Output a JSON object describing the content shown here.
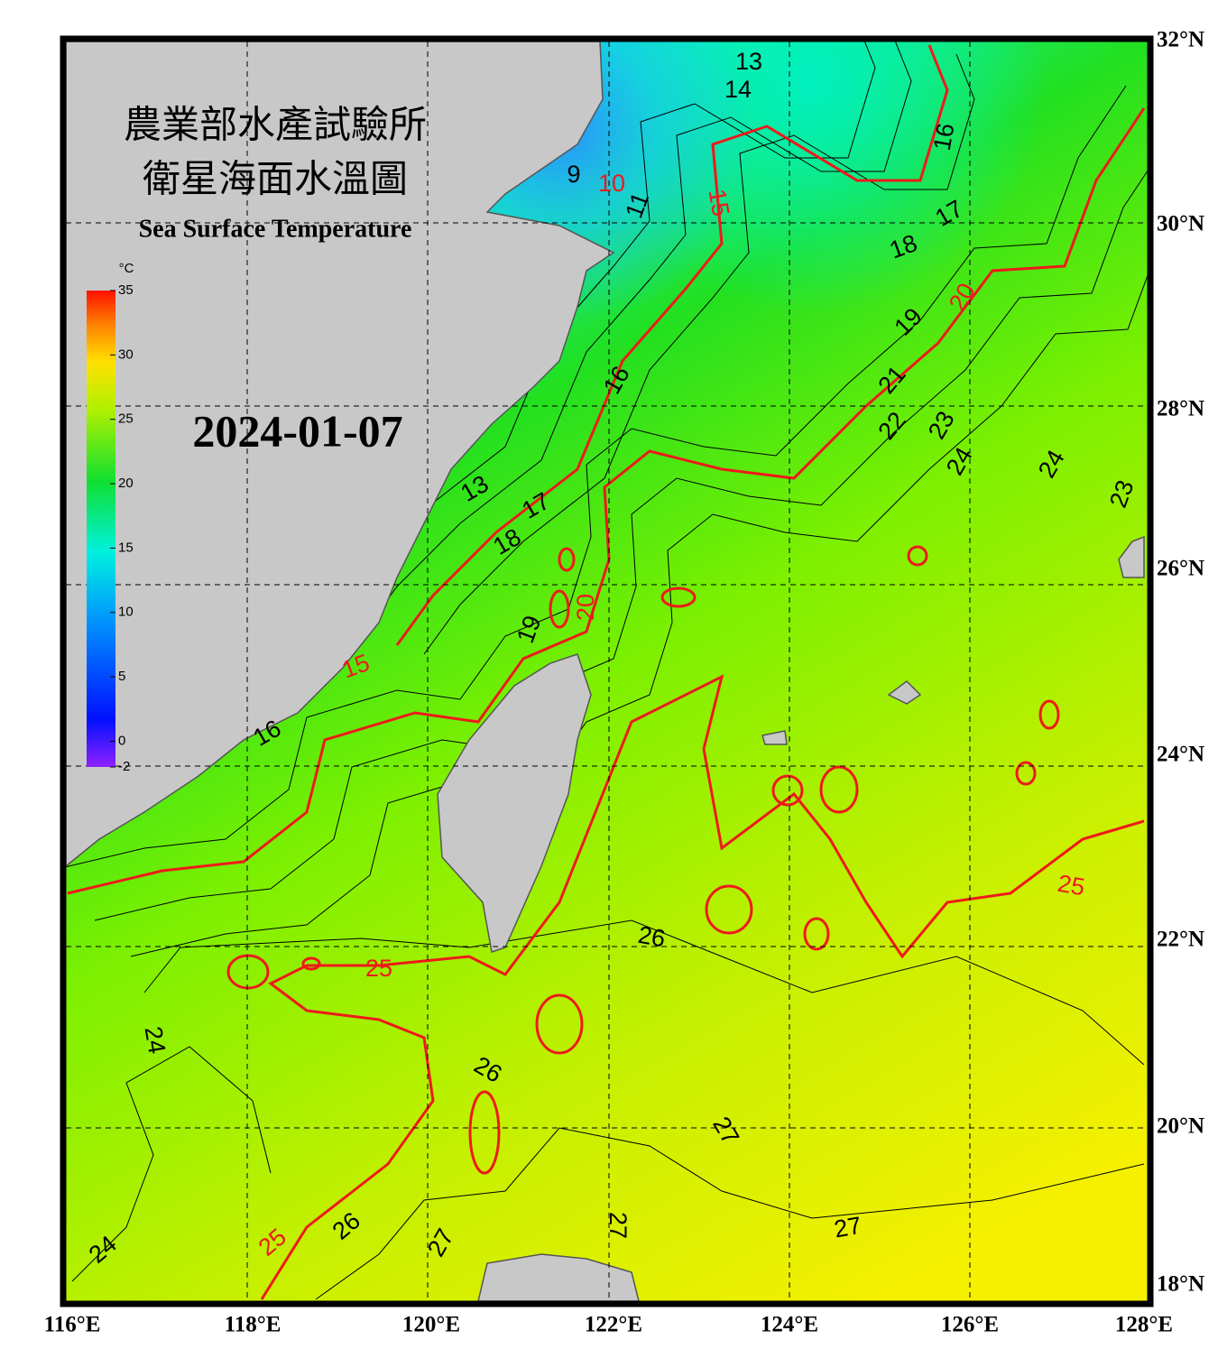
{
  "header": {
    "title_line1": "農業部水產試驗所",
    "title_line2": "衛星海面水溫圖",
    "title_en": "Sea Surface Temperature",
    "date": "2024-01-07"
  },
  "colorbar": {
    "unit": "°C",
    "ticks": [
      35,
      30,
      25,
      20,
      15,
      10,
      5,
      0,
      -2
    ],
    "range": [
      -2,
      35
    ]
  },
  "axes": {
    "lat_labels": [
      "32°N",
      "30°N",
      "28°N",
      "26°N",
      "24°N",
      "22°N",
      "20°N",
      "18°N"
    ],
    "lon_labels": [
      "116°E",
      "118°E",
      "120°E",
      "122°E",
      "124°E",
      "126°E",
      "128°E"
    ]
  },
  "contour_labels": [
    "13",
    "14",
    "16",
    "17",
    "18",
    "19",
    "21",
    "22",
    "23",
    "24",
    "24",
    "23",
    "9",
    "11",
    "16",
    "13",
    "17",
    "18",
    "19",
    "16",
    "26",
    "24",
    "26",
    "27",
    "26",
    "27",
    "27",
    "27",
    "24"
  ],
  "isotherm_labels": [
    "10",
    "15",
    "20",
    "20",
    "15",
    "25",
    "25",
    "25"
  ]
}
